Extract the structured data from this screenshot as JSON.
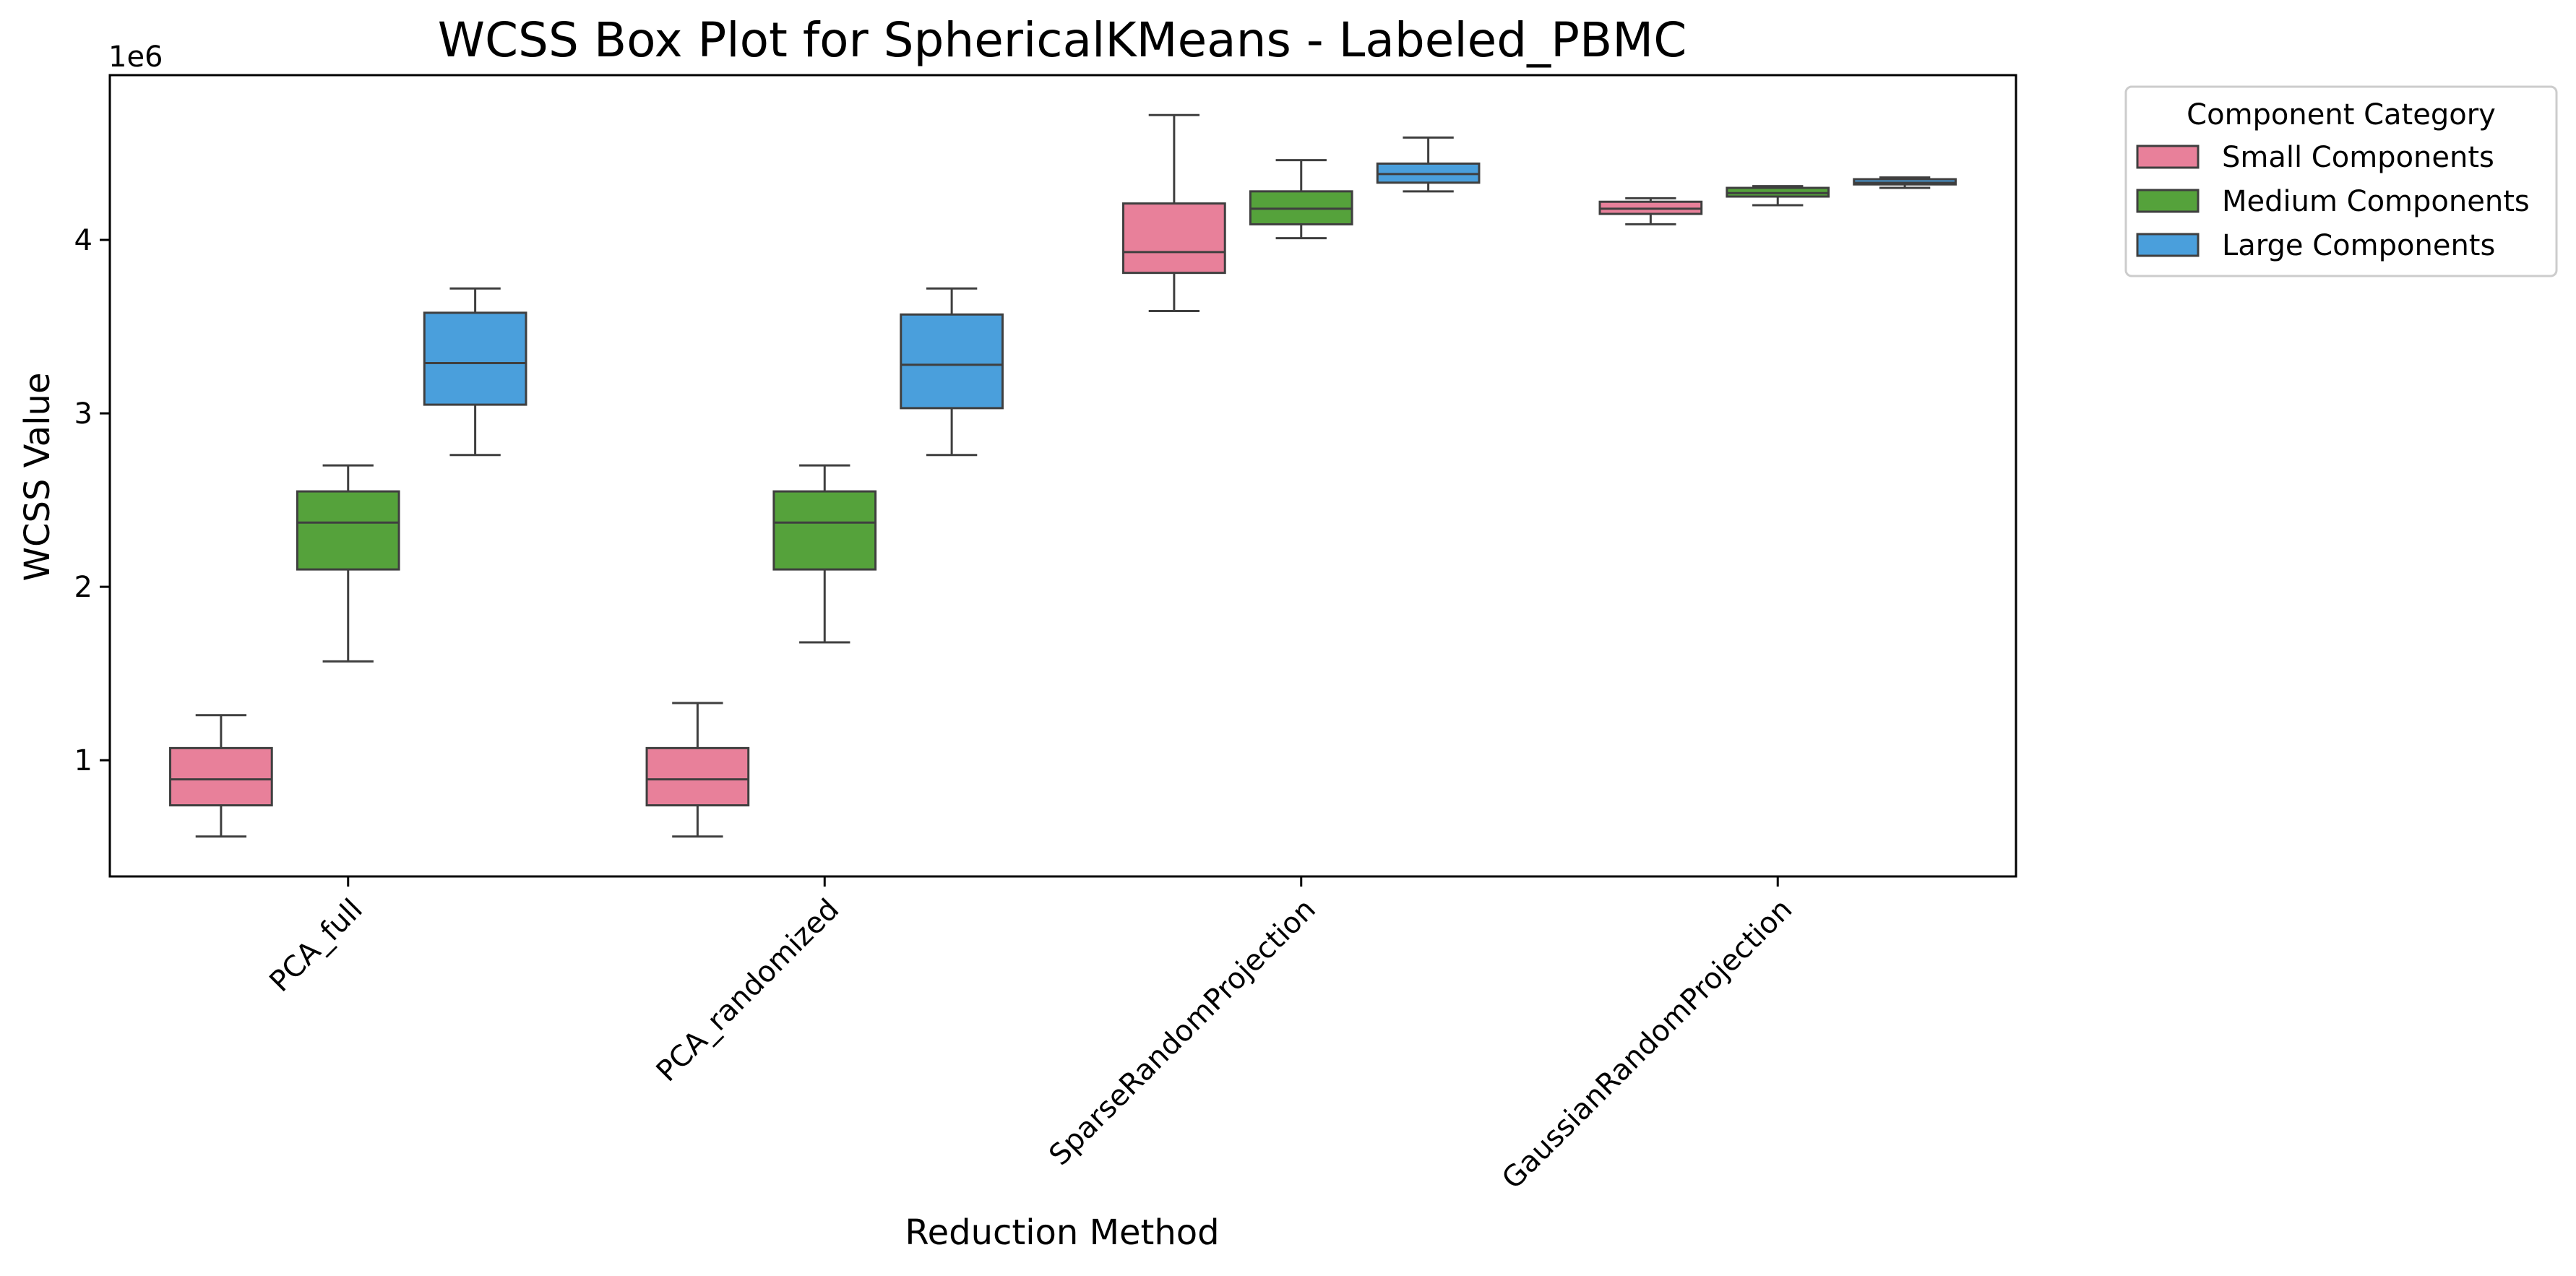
{
  "chart_data": {
    "type": "box",
    "title": "WCSS Box Plot for SphericalKMeans - Labeled_PBMC",
    "xlabel": "Reduction Method",
    "ylabel": "WCSS Value",
    "y_offset_label": "1e6",
    "ylim": [
      330000,
      4950000
    ],
    "yticks": [
      1000000,
      2000000,
      3000000,
      4000000
    ],
    "ytick_labels": [
      "1",
      "2",
      "3",
      "4"
    ],
    "categories": [
      "PCA_full",
      "PCA_randomized",
      "SparseRandomProjection",
      "GaussianRandomProjection"
    ],
    "grid": false,
    "legend": {
      "title": "Component Category",
      "position": "outside-top-right"
    },
    "series": [
      {
        "name": "Small Components",
        "color": "#e8809a",
        "boxes": [
          {
            "min": 560000,
            "q1": 740000,
            "median": 890000,
            "q3": 1070000,
            "max": 1260000
          },
          {
            "min": 560000,
            "q1": 740000,
            "median": 890000,
            "q3": 1070000,
            "max": 1330000
          },
          {
            "min": 3590000,
            "q1": 3810000,
            "median": 3930000,
            "q3": 4210000,
            "max": 4720000
          },
          {
            "min": 4090000,
            "q1": 4150000,
            "median": 4180000,
            "q3": 4220000,
            "max": 4240000
          }
        ]
      },
      {
        "name": "Medium Components",
        "color": "#55a23b",
        "boxes": [
          {
            "min": 1570000,
            "q1": 2100000,
            "median": 2370000,
            "q3": 2550000,
            "max": 2700000
          },
          {
            "min": 1680000,
            "q1": 2100000,
            "median": 2370000,
            "q3": 2550000,
            "max": 2700000
          },
          {
            "min": 4010000,
            "q1": 4090000,
            "median": 4180000,
            "q3": 4280000,
            "max": 4460000
          },
          {
            "min": 4200000,
            "q1": 4250000,
            "median": 4270000,
            "q3": 4300000,
            "max": 4310000
          }
        ]
      },
      {
        "name": "Large Components",
        "color": "#4a9fdc",
        "boxes": [
          {
            "min": 2760000,
            "q1": 3050000,
            "median": 3290000,
            "q3": 3580000,
            "max": 3720000
          },
          {
            "min": 2760000,
            "q1": 3030000,
            "median": 3280000,
            "q3": 3570000,
            "max": 3720000
          },
          {
            "min": 4280000,
            "q1": 4330000,
            "median": 4380000,
            "q3": 4440000,
            "max": 4590000
          },
          {
            "min": 4300000,
            "q1": 4320000,
            "median": 4330000,
            "q3": 4350000,
            "max": 4360000
          }
        ]
      }
    ]
  }
}
